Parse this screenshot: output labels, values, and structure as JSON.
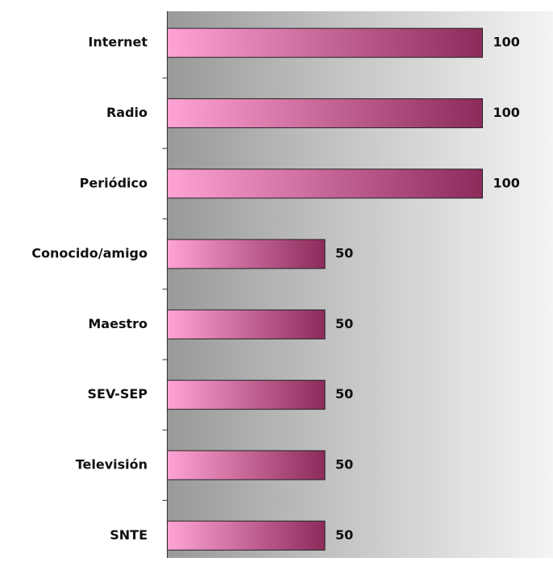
{
  "chart_data": {
    "type": "barh",
    "categories": [
      "Internet",
      "Radio",
      "Periódico",
      "Conocido/amigo",
      "Maestro",
      "SEV-SEP",
      "Televisión",
      "SNTE"
    ],
    "values": [
      100,
      100,
      100,
      50,
      50,
      50,
      50,
      50
    ],
    "gradient": [
      "#ffa3d4",
      "#8c2b5b"
    ],
    "xlim": [
      0,
      120
    ]
  }
}
